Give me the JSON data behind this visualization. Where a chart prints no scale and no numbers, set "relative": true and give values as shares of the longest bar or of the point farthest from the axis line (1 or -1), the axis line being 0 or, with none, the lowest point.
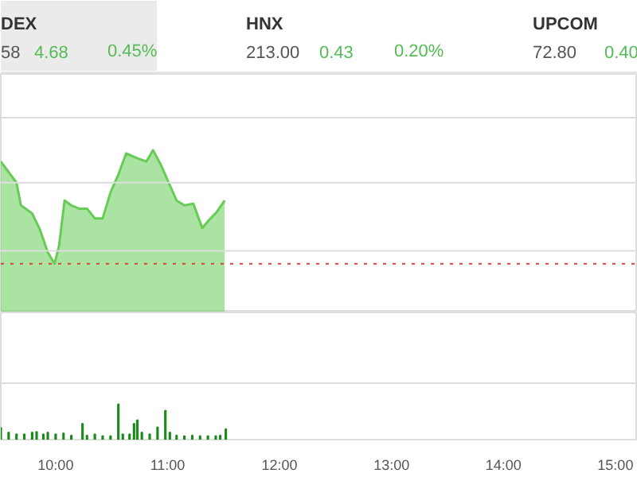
{
  "chart_data": [
    {
      "type": "other",
      "annotations": [
        "DEX",
        "58",
        "4.68",
        "0.45%",
        "HNX",
        "213.00",
        "0.43",
        "0.20%",
        "UPCOM",
        "72.80",
        "0.40"
      ]
    },
    {
      "type": "area",
      "relative": true,
      "tick_labels": false,
      "xlim": [
        9.51,
        15.2
      ],
      "x": [
        9.51,
        9.65,
        9.69,
        9.79,
        9.86,
        9.93,
        9.99,
        10.03,
        10.08,
        10.14,
        10.21,
        10.28,
        10.35,
        10.42,
        10.49,
        10.56,
        10.63,
        10.73,
        10.81,
        10.87,
        10.94,
        11.01,
        11.08,
        11.15,
        11.23,
        11.31,
        11.37,
        11.44,
        11.51
      ],
      "series": [
        {
          "color": "#66cc55",
          "values": [
            0.93,
            0.8,
            0.66,
            0.61,
            0.51,
            0.37,
            0.3,
            0.41,
            0.69,
            0.66,
            0.64,
            0.64,
            0.58,
            0.58,
            0.74,
            0.85,
            0.98,
            0.95,
            0.93,
            1.0,
            0.91,
            0.8,
            0.69,
            0.66,
            0.67,
            0.52,
            0.57,
            0.62,
            0.69
          ]
        }
      ],
      "ref_lines": [
        {
          "axis": "y",
          "value": 0.3,
          "color": "#e0403a",
          "line_style": "dotted"
        },
        {
          "axis": "y",
          "value": 0.38,
          "color": "#dddddd",
          "line_style": "solid"
        },
        {
          "axis": "y",
          "value": 0.8,
          "color": "#dddddd",
          "line_style": "solid"
        },
        {
          "axis": "y",
          "value": 1.2,
          "color": "#dddddd",
          "line_style": "solid"
        }
      ]
    },
    {
      "type": "bar",
      "relative": true,
      "tick_labels": "x",
      "xlim": [
        9.51,
        15.2
      ],
      "ref_lines": [
        {
          "axis": "y",
          "value": 1.6,
          "color": "#dddddd",
          "line_style": "solid"
        }
      ],
      "xticks": [
        {
          "value": 10,
          "label": "10:00"
        },
        {
          "value": 11,
          "label": "11:00"
        },
        {
          "value": 12,
          "label": "12:00"
        },
        {
          "value": 13,
          "label": "13:00"
        },
        {
          "value": 14,
          "label": "14:00"
        },
        {
          "value": 15,
          "label": "15:00"
        }
      ],
      "x": [
        9.51,
        9.58,
        9.65,
        9.72,
        9.79,
        9.83,
        9.89,
        9.93,
        10.0,
        10.07,
        10.14,
        10.24,
        10.28,
        10.35,
        10.42,
        10.49,
        10.56,
        10.6,
        10.66,
        10.7,
        10.73,
        10.77,
        10.84,
        10.91,
        10.98,
        11.02,
        11.08,
        11.15,
        11.22,
        11.29,
        11.36,
        11.43,
        11.47,
        11.52
      ],
      "series": [
        {
          "color": "#1a8a1a",
          "values": [
            0.33,
            0.2,
            0.15,
            0.15,
            0.2,
            0.22,
            0.15,
            0.2,
            0.15,
            0.18,
            0.12,
            0.45,
            0.12,
            0.15,
            0.1,
            0.1,
            1.0,
            0.15,
            0.15,
            0.45,
            0.55,
            0.2,
            0.15,
            0.35,
            0.82,
            0.2,
            0.12,
            0.1,
            0.12,
            0.1,
            0.1,
            0.1,
            0.12,
            0.3
          ]
        }
      ]
    }
  ]
}
